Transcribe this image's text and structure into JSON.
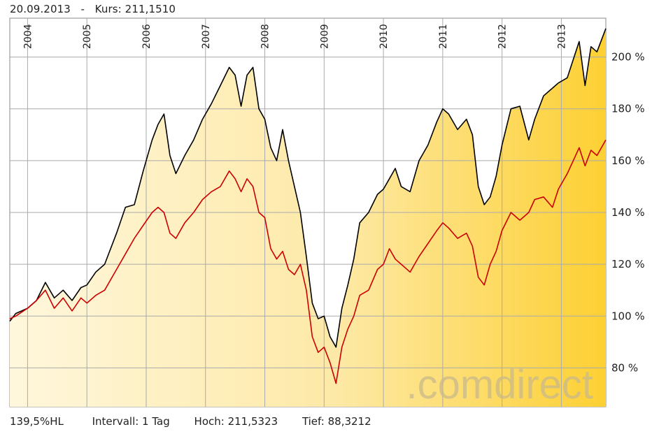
{
  "header": {
    "date": "20.09.2013",
    "separator": "-",
    "kurs_label": "Kurs:",
    "kurs_value": "211,1510"
  },
  "footer": {
    "range": "139,5%HL",
    "interval": "Intervall: 1 Tag",
    "high": "Hoch: 211,5323",
    "low": "Tief: 88,3212"
  },
  "watermark": ".comdirect",
  "colors": {
    "series_black": "#000000",
    "series_red": "#cc0000",
    "grid": "#aaaaaa",
    "fill_light": "#fff7dd",
    "fill_dark": "#fdd033",
    "watermark": "#c9b98a"
  },
  "chart_data": {
    "type": "area",
    "x_unit": "year",
    "x_ticks": [
      "2004",
      "2005",
      "2006",
      "2007",
      "2008",
      "2009",
      "2010",
      "2011",
      "2012",
      "2013"
    ],
    "y_ticks": [
      {
        "value": 80,
        "label": "80 %"
      },
      {
        "value": 100,
        "label": "100 %"
      },
      {
        "value": 120,
        "label": "120 %"
      },
      {
        "value": 140,
        "label": "140 %"
      },
      {
        "value": 160,
        "label": "160 %"
      },
      {
        "value": 180,
        "label": "180 %"
      },
      {
        "value": 200,
        "label": "200 %"
      }
    ],
    "xlim": [
      2003.7,
      2013.75
    ],
    "ylim": [
      65,
      215
    ],
    "grid": true,
    "series": [
      {
        "color": "#000000",
        "filled": true,
        "points": [
          [
            2003.7,
            98
          ],
          [
            2003.8,
            101
          ],
          [
            2004.0,
            103
          ],
          [
            2004.15,
            106
          ],
          [
            2004.3,
            113
          ],
          [
            2004.45,
            107
          ],
          [
            2004.6,
            110
          ],
          [
            2004.75,
            106
          ],
          [
            2004.9,
            111
          ],
          [
            2005.0,
            112
          ],
          [
            2005.15,
            117
          ],
          [
            2005.3,
            120
          ],
          [
            2005.5,
            132
          ],
          [
            2005.65,
            142
          ],
          [
            2005.8,
            143
          ],
          [
            2005.95,
            156
          ],
          [
            2006.1,
            168
          ],
          [
            2006.2,
            174
          ],
          [
            2006.3,
            178
          ],
          [
            2006.4,
            162
          ],
          [
            2006.5,
            155
          ],
          [
            2006.65,
            162
          ],
          [
            2006.8,
            168
          ],
          [
            2006.95,
            176
          ],
          [
            2007.1,
            182
          ],
          [
            2007.25,
            189
          ],
          [
            2007.4,
            196
          ],
          [
            2007.5,
            193
          ],
          [
            2007.6,
            181
          ],
          [
            2007.7,
            193
          ],
          [
            2007.8,
            196
          ],
          [
            2007.9,
            180
          ],
          [
            2008.0,
            176
          ],
          [
            2008.1,
            165
          ],
          [
            2008.2,
            160
          ],
          [
            2008.3,
            172
          ],
          [
            2008.4,
            160
          ],
          [
            2008.5,
            150
          ],
          [
            2008.6,
            140
          ],
          [
            2008.7,
            123
          ],
          [
            2008.8,
            105
          ],
          [
            2008.9,
            99
          ],
          [
            2009.0,
            100
          ],
          [
            2009.1,
            92
          ],
          [
            2009.2,
            88
          ],
          [
            2009.3,
            103
          ],
          [
            2009.4,
            112
          ],
          [
            2009.5,
            122
          ],
          [
            2009.6,
            136
          ],
          [
            2009.75,
            140
          ],
          [
            2009.9,
            147
          ],
          [
            2010.0,
            149
          ],
          [
            2010.1,
            153
          ],
          [
            2010.2,
            157
          ],
          [
            2010.3,
            150
          ],
          [
            2010.45,
            148
          ],
          [
            2010.6,
            160
          ],
          [
            2010.75,
            166
          ],
          [
            2010.9,
            175
          ],
          [
            2011.0,
            180
          ],
          [
            2011.1,
            178
          ],
          [
            2011.25,
            172
          ],
          [
            2011.4,
            176
          ],
          [
            2011.5,
            170
          ],
          [
            2011.6,
            150
          ],
          [
            2011.7,
            143
          ],
          [
            2011.8,
            146
          ],
          [
            2011.9,
            154
          ],
          [
            2012.0,
            166
          ],
          [
            2012.15,
            180
          ],
          [
            2012.3,
            181
          ],
          [
            2012.45,
            168
          ],
          [
            2012.55,
            176
          ],
          [
            2012.7,
            185
          ],
          [
            2012.85,
            188
          ],
          [
            2012.95,
            190
          ],
          [
            2013.1,
            192
          ],
          [
            2013.2,
            199
          ],
          [
            2013.3,
            206
          ],
          [
            2013.4,
            189
          ],
          [
            2013.5,
            204
          ],
          [
            2013.6,
            202
          ],
          [
            2013.75,
            211
          ]
        ]
      },
      {
        "color": "#cc0000",
        "filled": false,
        "points": [
          [
            2003.7,
            99
          ],
          [
            2003.8,
            100
          ],
          [
            2004.0,
            103
          ],
          [
            2004.15,
            106
          ],
          [
            2004.3,
            110
          ],
          [
            2004.45,
            103
          ],
          [
            2004.6,
            107
          ],
          [
            2004.75,
            102
          ],
          [
            2004.9,
            107
          ],
          [
            2005.0,
            105
          ],
          [
            2005.15,
            108
          ],
          [
            2005.3,
            110
          ],
          [
            2005.5,
            118
          ],
          [
            2005.65,
            124
          ],
          [
            2005.8,
            130
          ],
          [
            2005.95,
            135
          ],
          [
            2006.1,
            140
          ],
          [
            2006.2,
            142
          ],
          [
            2006.3,
            140
          ],
          [
            2006.4,
            132
          ],
          [
            2006.5,
            130
          ],
          [
            2006.65,
            136
          ],
          [
            2006.8,
            140
          ],
          [
            2006.95,
            145
          ],
          [
            2007.1,
            148
          ],
          [
            2007.25,
            150
          ],
          [
            2007.4,
            156
          ],
          [
            2007.5,
            153
          ],
          [
            2007.6,
            148
          ],
          [
            2007.7,
            153
          ],
          [
            2007.8,
            150
          ],
          [
            2007.9,
            140
          ],
          [
            2008.0,
            138
          ],
          [
            2008.1,
            126
          ],
          [
            2008.2,
            122
          ],
          [
            2008.3,
            125
          ],
          [
            2008.4,
            118
          ],
          [
            2008.5,
            116
          ],
          [
            2008.6,
            120
          ],
          [
            2008.7,
            110
          ],
          [
            2008.8,
            92
          ],
          [
            2008.9,
            86
          ],
          [
            2009.0,
            88
          ],
          [
            2009.1,
            82
          ],
          [
            2009.2,
            74
          ],
          [
            2009.3,
            88
          ],
          [
            2009.4,
            95
          ],
          [
            2009.5,
            100
          ],
          [
            2009.6,
            108
          ],
          [
            2009.75,
            110
          ],
          [
            2009.9,
            118
          ],
          [
            2010.0,
            120
          ],
          [
            2010.1,
            126
          ],
          [
            2010.2,
            122
          ],
          [
            2010.3,
            120
          ],
          [
            2010.45,
            117
          ],
          [
            2010.6,
            123
          ],
          [
            2010.75,
            128
          ],
          [
            2010.9,
            133
          ],
          [
            2011.0,
            136
          ],
          [
            2011.1,
            134
          ],
          [
            2011.25,
            130
          ],
          [
            2011.4,
            132
          ],
          [
            2011.5,
            127
          ],
          [
            2011.6,
            115
          ],
          [
            2011.7,
            112
          ],
          [
            2011.8,
            120
          ],
          [
            2011.9,
            125
          ],
          [
            2012.0,
            133
          ],
          [
            2012.15,
            140
          ],
          [
            2012.3,
            137
          ],
          [
            2012.45,
            140
          ],
          [
            2012.55,
            145
          ],
          [
            2012.7,
            146
          ],
          [
            2012.85,
            142
          ],
          [
            2012.95,
            149
          ],
          [
            2013.1,
            155
          ],
          [
            2013.2,
            160
          ],
          [
            2013.3,
            165
          ],
          [
            2013.4,
            158
          ],
          [
            2013.5,
            164
          ],
          [
            2013.6,
            162
          ],
          [
            2013.75,
            168
          ]
        ]
      }
    ]
  }
}
